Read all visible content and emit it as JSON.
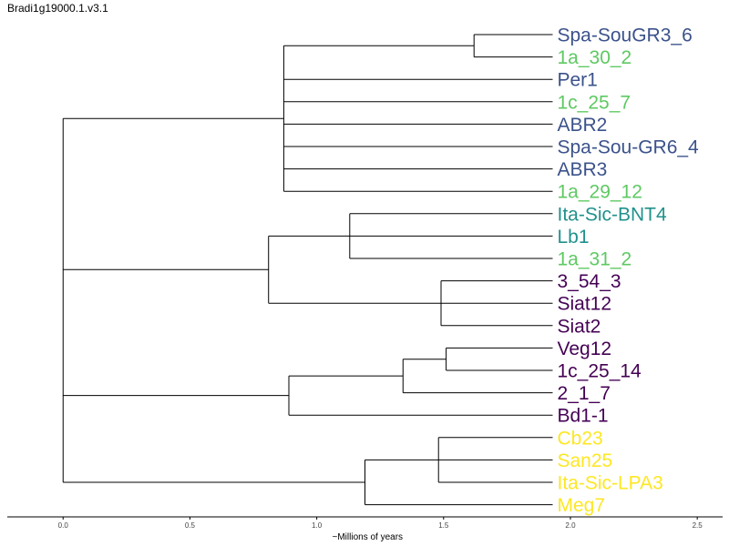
{
  "title": "Bradi1g19000.1.v3.1",
  "axis": {
    "label": "~Millions of years",
    "ticks": [
      0.0,
      0.5,
      1.0,
      1.5,
      2.0,
      2.5
    ],
    "tick_labels": [
      "0.0",
      "0.5",
      "1.0",
      "1.5",
      "2.0",
      "2.5"
    ],
    "range": [
      -0.22,
      2.6
    ]
  },
  "colors": {
    "navy": "#3b528b",
    "green": "#5ec962",
    "teal": "#21918c",
    "purple": "#440154",
    "yellow": "#fde725",
    "line": "#000000"
  },
  "leaves": [
    {
      "label": "Spa-SouGR3_6",
      "color": "navy"
    },
    {
      "label": "1a_30_2",
      "color": "green"
    },
    {
      "label": "Per1",
      "color": "navy"
    },
    {
      "label": "1c_25_7",
      "color": "green"
    },
    {
      "label": "ABR2",
      "color": "navy"
    },
    {
      "label": "Spa-Sou-GR6_4",
      "color": "navy"
    },
    {
      "label": "ABR3",
      "color": "navy"
    },
    {
      "label": "1a_29_12",
      "color": "green"
    },
    {
      "label": "Ita-Sic-BNT4",
      "color": "teal"
    },
    {
      "label": "Lb1",
      "color": "teal"
    },
    {
      "label": "1a_31_2",
      "color": "green"
    },
    {
      "label": "3_54_3",
      "color": "purple"
    },
    {
      "label": "Siat12",
      "color": "purple"
    },
    {
      "label": "Siat2",
      "color": "purple"
    },
    {
      "label": "Veg12",
      "color": "purple"
    },
    {
      "label": "1c_25_14",
      "color": "purple"
    },
    {
      "label": "2_1_7",
      "color": "purple"
    },
    {
      "label": "Bd1-1",
      "color": "purple"
    },
    {
      "label": "Cb23",
      "color": "yellow"
    },
    {
      "label": "San25",
      "color": "yellow"
    },
    {
      "label": "Ita-Sic-LPA3",
      "color": "yellow"
    },
    {
      "label": "Meg7",
      "color": "yellow"
    }
  ],
  "tip_height": 1.93,
  "tree": {
    "h": 0.0,
    "children": [
      {
        "h": 0.87,
        "children": [
          {
            "h": 1.62,
            "children": [
              {
                "leaf": 0
              },
              {
                "leaf": 1
              }
            ]
          },
          {
            "leaf": 2
          },
          {
            "leaf": 3
          },
          {
            "leaf": 4
          },
          {
            "leaf": 5
          },
          {
            "leaf": 6
          },
          {
            "leaf": 7
          }
        ]
      },
      {
        "h": 0.81,
        "children": [
          {
            "h": 1.13,
            "children": [
              {
                "leaf": 8
              },
              {
                "leaf": 9
              },
              {
                "leaf": 10
              }
            ]
          },
          {
            "h": 1.49,
            "children": [
              {
                "leaf": 11
              },
              {
                "leaf": 12
              },
              {
                "leaf": 13
              }
            ]
          }
        ]
      },
      {
        "h": 0.89,
        "children": [
          {
            "h": 1.34,
            "children": [
              {
                "h": 1.51,
                "children": [
                  {
                    "leaf": 14
                  },
                  {
                    "leaf": 15
                  }
                ]
              },
              {
                "leaf": 16
              }
            ]
          },
          {
            "leaf": 17
          }
        ]
      },
      {
        "h": 1.19,
        "children": [
          {
            "h": 1.48,
            "children": [
              {
                "leaf": 18
              },
              {
                "leaf": 19
              },
              {
                "leaf": 20
              }
            ]
          },
          {
            "leaf": 21
          }
        ]
      }
    ]
  }
}
